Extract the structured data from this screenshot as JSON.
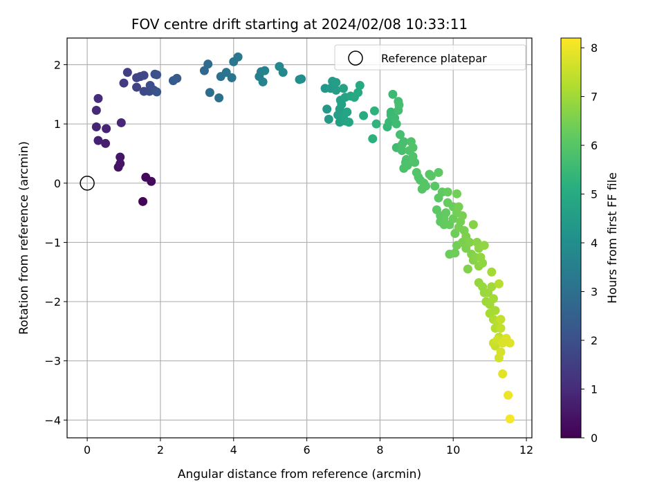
{
  "chart_data": {
    "type": "scatter",
    "title": "FOV centre drift starting at 2024/02/08 10:33:11",
    "xlabel": "Angular distance from reference (arcmin)",
    "ylabel": "Rotation from reference (arcmin)",
    "xlim": [
      -0.55,
      12.15
    ],
    "ylim": [
      -4.3,
      2.45
    ],
    "xticks": [
      0,
      2,
      4,
      6,
      8,
      10,
      12
    ],
    "yticks": [
      -4,
      -3,
      -2,
      -1,
      0,
      1,
      2
    ],
    "grid": true,
    "legend": {
      "position": "top-right",
      "entries": [
        "Reference platepar"
      ]
    },
    "reference_point": {
      "x": 0,
      "y": 0
    },
    "colorbar": {
      "label": "Hours from first FF file",
      "range": [
        0,
        8.2
      ],
      "ticks": [
        0,
        1,
        2,
        3,
        4,
        5,
        6,
        7,
        8
      ],
      "colormap": "viridis"
    },
    "series": [
      {
        "points": [
          [
            1.52,
            -0.31,
            0.1
          ],
          [
            1.6,
            0.1,
            0.15
          ],
          [
            1.75,
            0.03,
            0.2
          ],
          [
            0.85,
            0.27,
            0.4
          ],
          [
            0.9,
            0.33,
            0.45
          ],
          [
            0.9,
            0.44,
            0.5
          ],
          [
            0.5,
            0.67,
            0.7
          ],
          [
            0.3,
            0.72,
            0.75
          ],
          [
            0.52,
            0.92,
            0.8
          ],
          [
            0.25,
            0.95,
            0.85
          ],
          [
            0.93,
            1.02,
            0.9
          ],
          [
            0.25,
            1.23,
            0.95
          ],
          [
            0.3,
            1.43,
            1.0
          ],
          [
            1.0,
            1.69,
            1.4
          ],
          [
            1.1,
            1.87,
            1.5
          ],
          [
            1.35,
            1.62,
            1.6
          ],
          [
            1.35,
            1.78,
            1.65
          ],
          [
            1.45,
            1.8,
            1.7
          ],
          [
            1.55,
            1.82,
            1.75
          ],
          [
            1.55,
            1.55,
            1.8
          ],
          [
            1.7,
            1.55,
            1.85
          ],
          [
            1.72,
            1.65,
            1.9
          ],
          [
            1.82,
            1.57,
            1.95
          ],
          [
            1.85,
            1.84,
            2.0
          ],
          [
            1.9,
            1.83,
            2.05
          ],
          [
            1.9,
            1.54,
            2.1
          ],
          [
            2.35,
            1.73,
            2.3
          ],
          [
            2.45,
            1.77,
            2.35
          ],
          [
            3.2,
            1.9,
            2.8
          ],
          [
            3.3,
            2.01,
            2.85
          ],
          [
            3.35,
            1.53,
            2.9
          ],
          [
            3.6,
            1.44,
            3.0
          ],
          [
            3.65,
            1.8,
            3.05
          ],
          [
            3.8,
            1.87,
            3.1
          ],
          [
            3.95,
            1.78,
            3.15
          ],
          [
            4.0,
            2.05,
            3.2
          ],
          [
            4.12,
            2.13,
            3.25
          ],
          [
            4.7,
            1.8,
            3.5
          ],
          [
            4.75,
            1.88,
            3.55
          ],
          [
            4.8,
            1.71,
            3.6
          ],
          [
            4.85,
            1.9,
            3.65
          ],
          [
            5.25,
            1.97,
            3.8
          ],
          [
            5.35,
            1.87,
            3.85
          ],
          [
            5.8,
            1.75,
            4.0
          ],
          [
            5.85,
            1.76,
            4.05
          ],
          [
            6.5,
            1.6,
            4.3
          ],
          [
            6.55,
            1.25,
            4.35
          ],
          [
            6.6,
            1.08,
            4.4
          ],
          [
            6.65,
            1.6,
            4.45
          ],
          [
            6.7,
            1.72,
            4.5
          ],
          [
            6.8,
            1.57,
            4.5
          ],
          [
            6.8,
            1.7,
            4.55
          ],
          [
            6.85,
            1.15,
            4.55
          ],
          [
            6.9,
            1.25,
            4.6
          ],
          [
            6.9,
            1.03,
            4.6
          ],
          [
            6.92,
            1.4,
            4.65
          ],
          [
            6.95,
            1.33,
            4.65
          ],
          [
            7.0,
            1.6,
            4.7
          ],
          [
            7.0,
            1.12,
            4.7
          ],
          [
            7.05,
            1.45,
            4.75
          ],
          [
            7.05,
            1.05,
            4.75
          ],
          [
            7.1,
            1.2,
            4.8
          ],
          [
            7.15,
            1.03,
            4.8
          ],
          [
            7.2,
            1.47,
            4.85
          ],
          [
            7.3,
            1.45,
            4.9
          ],
          [
            7.4,
            1.53,
            4.95
          ],
          [
            7.45,
            1.65,
            5.0
          ],
          [
            7.55,
            1.14,
            5.05
          ],
          [
            7.8,
            0.75,
            5.2
          ],
          [
            7.85,
            1.22,
            5.25
          ],
          [
            7.9,
            1.0,
            5.3
          ],
          [
            8.2,
            0.95,
            5.4
          ],
          [
            8.25,
            1.03,
            5.45
          ],
          [
            8.3,
            1.15,
            5.5
          ],
          [
            8.3,
            1.2,
            5.5
          ],
          [
            8.35,
            1.5,
            5.55
          ],
          [
            8.4,
            1.1,
            5.55
          ],
          [
            8.45,
            1.0,
            5.6
          ],
          [
            8.45,
            0.6,
            5.6
          ],
          [
            8.5,
            1.23,
            5.65
          ],
          [
            8.5,
            1.38,
            5.65
          ],
          [
            8.52,
            1.32,
            5.7
          ],
          [
            8.55,
            0.82,
            5.7
          ],
          [
            8.6,
            0.65,
            5.75
          ],
          [
            8.6,
            0.55,
            5.75
          ],
          [
            8.65,
            0.7,
            5.75
          ],
          [
            8.65,
            0.25,
            5.8
          ],
          [
            8.7,
            0.35,
            5.8
          ],
          [
            8.72,
            0.4,
            5.8
          ],
          [
            8.75,
            0.3,
            5.85
          ],
          [
            8.8,
            0.55,
            5.85
          ],
          [
            8.85,
            0.7,
            5.85
          ],
          [
            8.9,
            0.6,
            5.9
          ],
          [
            8.9,
            0.45,
            5.9
          ],
          [
            8.95,
            0.35,
            5.9
          ],
          [
            9.0,
            0.18,
            5.95
          ],
          [
            9.05,
            0.1,
            5.95
          ],
          [
            9.1,
            0.05,
            5.95
          ],
          [
            9.15,
            -0.1,
            6.0
          ],
          [
            9.2,
            0.0,
            6.0
          ],
          [
            9.25,
            -0.05,
            6.0
          ],
          [
            9.35,
            0.15,
            6.05
          ],
          [
            9.4,
            0.12,
            6.05
          ],
          [
            9.5,
            -0.05,
            6.05
          ],
          [
            9.55,
            -0.45,
            6.1
          ],
          [
            9.6,
            0.18,
            6.1
          ],
          [
            9.6,
            -0.25,
            6.1
          ],
          [
            9.65,
            -0.55,
            6.15
          ],
          [
            9.65,
            -0.65,
            6.15
          ],
          [
            9.7,
            -0.15,
            6.15
          ],
          [
            9.75,
            -0.6,
            6.2
          ],
          [
            9.75,
            -0.7,
            6.2
          ],
          [
            9.8,
            -0.5,
            6.2
          ],
          [
            9.85,
            -0.33,
            6.25
          ],
          [
            9.85,
            -0.15,
            6.25
          ],
          [
            9.9,
            -0.7,
            6.25
          ],
          [
            9.9,
            -1.2,
            6.3
          ],
          [
            10.0,
            -0.6,
            6.3
          ],
          [
            10.0,
            -0.4,
            6.3
          ],
          [
            10.05,
            -1.18,
            6.35
          ],
          [
            10.05,
            -0.85,
            6.35
          ],
          [
            10.1,
            -0.18,
            6.4
          ],
          [
            10.1,
            -0.5,
            6.4
          ],
          [
            10.1,
            -1.05,
            6.4
          ],
          [
            10.15,
            -0.75,
            6.45
          ],
          [
            10.15,
            -0.4,
            6.45
          ],
          [
            10.2,
            -0.65,
            6.45
          ],
          [
            10.25,
            -0.55,
            6.5
          ],
          [
            10.25,
            -1.0,
            6.5
          ],
          [
            10.3,
            -0.8,
            6.5
          ],
          [
            10.35,
            -1.1,
            6.55
          ],
          [
            10.35,
            -0.9,
            6.55
          ],
          [
            10.4,
            -1.45,
            6.6
          ],
          [
            10.45,
            -1.0,
            6.6
          ],
          [
            10.5,
            -1.2,
            6.6
          ],
          [
            10.55,
            -0.7,
            6.65
          ],
          [
            10.55,
            -1.3,
            6.65
          ],
          [
            10.6,
            -1.25,
            6.7
          ],
          [
            10.65,
            -1.0,
            6.7
          ],
          [
            10.7,
            -1.1,
            6.75
          ],
          [
            10.7,
            -1.4,
            6.75
          ],
          [
            10.75,
            -1.25,
            6.8
          ],
          [
            10.8,
            -1.35,
            6.8
          ],
          [
            10.85,
            -1.05,
            6.8
          ],
          [
            10.7,
            -1.68,
            6.85
          ],
          [
            10.8,
            -1.75,
            6.9
          ],
          [
            10.85,
            -1.85,
            6.9
          ],
          [
            10.9,
            -2.0,
            6.95
          ],
          [
            10.95,
            -1.85,
            6.95
          ],
          [
            11.0,
            -2.05,
            7.0
          ],
          [
            11.05,
            -1.75,
            7.0
          ],
          [
            11.05,
            -1.5,
            7.05
          ],
          [
            11.1,
            -1.95,
            7.05
          ],
          [
            11.0,
            -2.2,
            7.1
          ],
          [
            11.15,
            -2.15,
            7.1
          ],
          [
            11.1,
            -2.3,
            7.2
          ],
          [
            11.15,
            -2.45,
            7.25
          ],
          [
            11.2,
            -2.35,
            7.3
          ],
          [
            11.25,
            -1.7,
            7.3
          ],
          [
            11.25,
            -2.6,
            7.4
          ],
          [
            11.3,
            -2.45,
            7.45
          ],
          [
            11.15,
            -2.75,
            7.5
          ],
          [
            11.3,
            -2.3,
            7.5
          ],
          [
            11.1,
            -2.7,
            7.55
          ],
          [
            11.2,
            -2.65,
            7.6
          ],
          [
            11.35,
            -2.65,
            7.6
          ],
          [
            11.25,
            -2.95,
            7.65
          ],
          [
            11.3,
            -2.85,
            7.7
          ],
          [
            11.35,
            -2.7,
            7.75
          ],
          [
            11.45,
            -2.62,
            7.75
          ],
          [
            11.55,
            -2.7,
            7.8
          ],
          [
            11.35,
            -3.22,
            7.85
          ],
          [
            11.5,
            -3.58,
            8.0
          ],
          [
            11.55,
            -3.98,
            8.1
          ]
        ]
      }
    ]
  }
}
